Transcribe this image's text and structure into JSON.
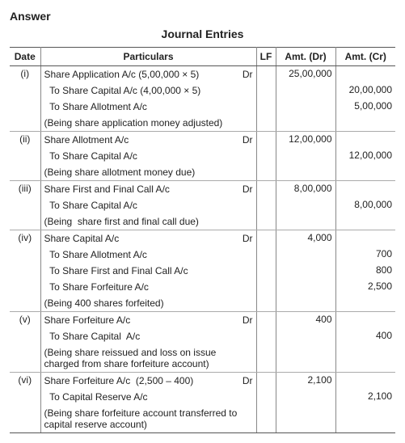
{
  "heading": "Answer",
  "title": "Journal Entries",
  "columns": {
    "date": "Date",
    "particulars": "Particulars",
    "lf": "LF",
    "dr": "Amt. (Dr)",
    "cr": "Amt. (Cr)"
  },
  "entries": [
    {
      "id": "(i)",
      "lines": [
        {
          "text": "Share Application A/c (5,00,000 × 5)",
          "dr": "Dr",
          "amt_dr": "25,00,000",
          "amt_cr": ""
        },
        {
          "text": "  To Share Capital A/c (4,00,000 × 5)",
          "dr": "",
          "amt_dr": "",
          "amt_cr": "20,00,000"
        },
        {
          "text": "  To Share Allotment A/c",
          "dr": "",
          "amt_dr": "",
          "amt_cr": "5,00,000"
        },
        {
          "text": "(Being share application money adjusted)",
          "dr": "",
          "amt_dr": "",
          "amt_cr": ""
        }
      ]
    },
    {
      "id": "(ii)",
      "lines": [
        {
          "text": "Share Allotment A/c",
          "dr": "Dr",
          "amt_dr": "12,00,000",
          "amt_cr": ""
        },
        {
          "text": "  To Share Capital A/c",
          "dr": "",
          "amt_dr": "",
          "amt_cr": "12,00,000"
        },
        {
          "text": "(Being share allotment money due)",
          "dr": "",
          "amt_dr": "",
          "amt_cr": ""
        }
      ]
    },
    {
      "id": "(iii)",
      "lines": [
        {
          "text": "Share First and Final Call A/c",
          "dr": "Dr",
          "amt_dr": "8,00,000",
          "amt_cr": ""
        },
        {
          "text": "  To Share Capital A/c",
          "dr": "",
          "amt_dr": "",
          "amt_cr": "8,00,000"
        },
        {
          "text": "(Being  share first and final call due)",
          "dr": "",
          "amt_dr": "",
          "amt_cr": ""
        }
      ]
    },
    {
      "id": "(iv)",
      "lines": [
        {
          "text": "Share Capital A/c",
          "dr": "Dr",
          "amt_dr": "4,000",
          "amt_cr": ""
        },
        {
          "text": "  To Share Allotment A/c",
          "dr": "",
          "amt_dr": "",
          "amt_cr": "700"
        },
        {
          "text": "  To Share First and Final Call A/c",
          "dr": "",
          "amt_dr": "",
          "amt_cr": "800"
        },
        {
          "text": "  To Share Forfeiture A/c",
          "dr": "",
          "amt_dr": "",
          "amt_cr": "2,500"
        },
        {
          "text": "(Being 400 shares forfeited)",
          "dr": "",
          "amt_dr": "",
          "amt_cr": ""
        }
      ]
    },
    {
      "id": "(v)",
      "lines": [
        {
          "text": "Share Forfeiture A/c",
          "dr": "Dr",
          "amt_dr": "400",
          "amt_cr": ""
        },
        {
          "text": "  To Share Capital  A/c",
          "dr": "",
          "amt_dr": "",
          "amt_cr": "400"
        },
        {
          "text": "(Being share reissued and loss on issue charged from share forfeiture account)",
          "dr": "",
          "amt_dr": "",
          "amt_cr": ""
        }
      ]
    },
    {
      "id": "(vi)",
      "lines": [
        {
          "text": "Share Forfeiture A/c  (2,500 – 400)",
          "dr": "Dr",
          "amt_dr": "2,100",
          "amt_cr": ""
        },
        {
          "text": "  To Capital Reserve A/c",
          "dr": "",
          "amt_dr": "",
          "amt_cr": "2,100"
        },
        {
          "text": "(Being share forfeiture account transferred to capital reserve account)",
          "dr": "",
          "amt_dr": "",
          "amt_cr": ""
        }
      ]
    }
  ]
}
